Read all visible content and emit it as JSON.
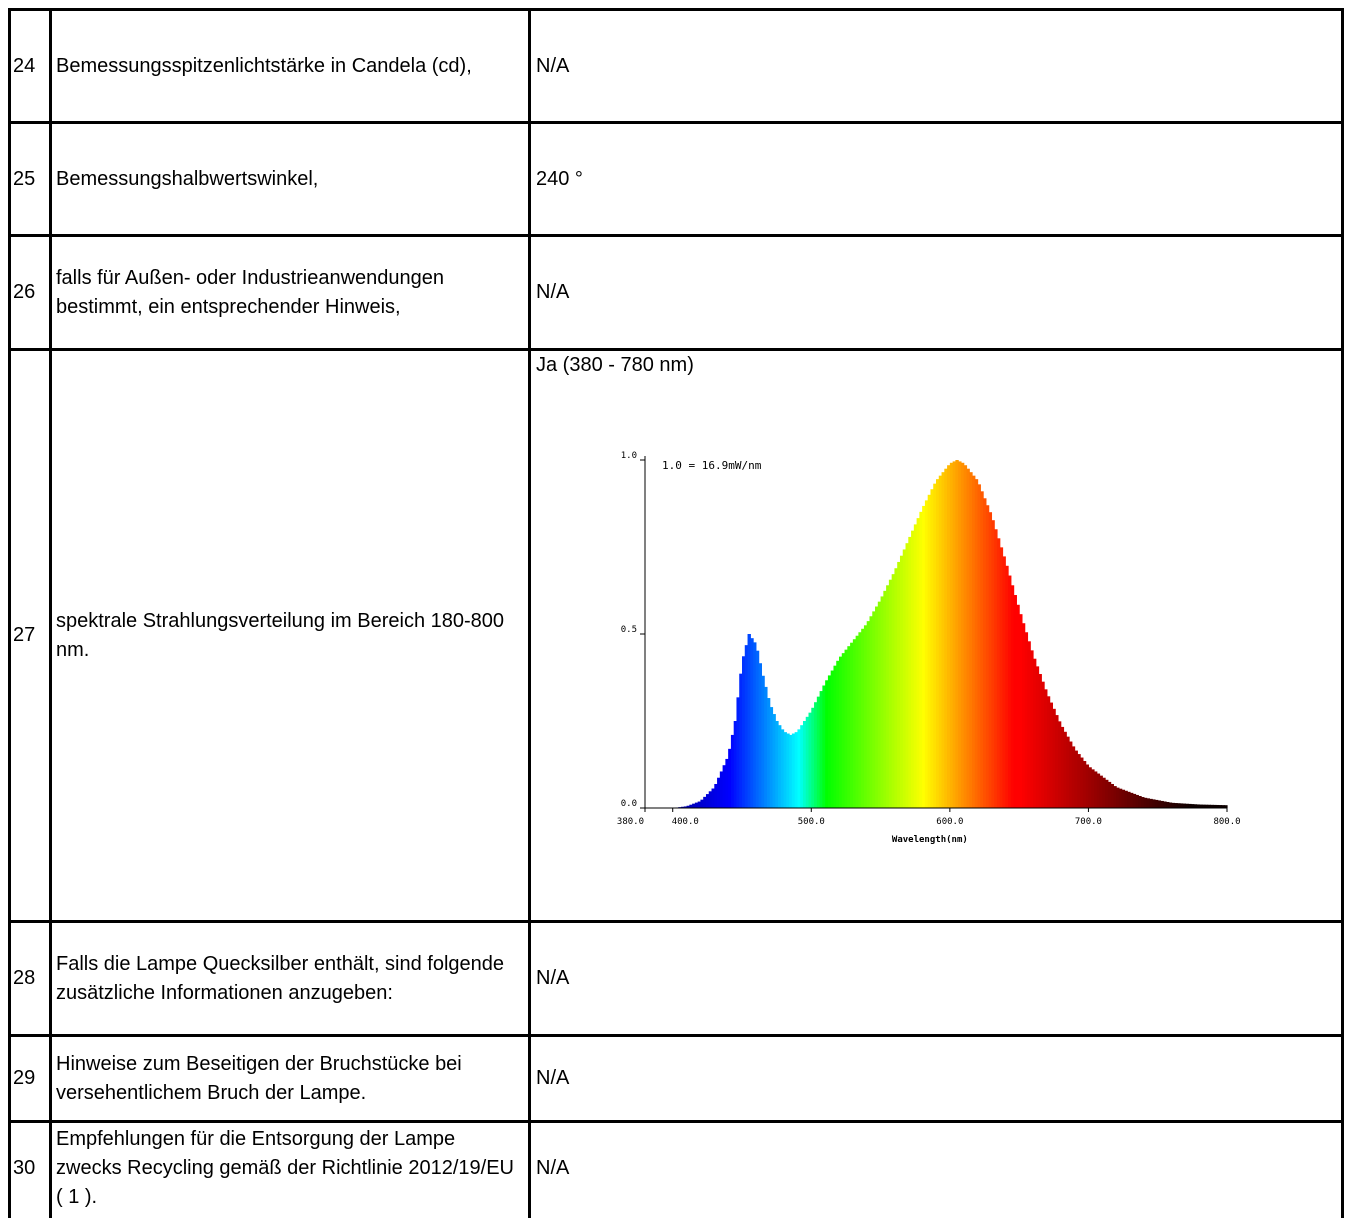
{
  "rows": [
    {
      "num": "24",
      "desc": "Bemessungsspitzenlichtstärke in Candela (cd),",
      "value": "N/A"
    },
    {
      "num": "25",
      "desc": "Bemessungshalbwertswinkel,",
      "value": "240 °"
    },
    {
      "num": "26",
      "desc": "falls für Außen- oder Industrieanwendungen bestimmt, ein entsprechender Hinweis,",
      "value": "N/A"
    },
    {
      "num": "27",
      "desc": "spektrale Strahlungsverteilung im Bereich 180-800 nm.",
      "value": "Ja (380 - 780 nm)"
    },
    {
      "num": "28",
      "desc": "Falls die Lampe Quecksilber enthält, sind folgende zusätzliche Informationen anzugeben:",
      "value": "N/A"
    },
    {
      "num": "29",
      "desc": "Hinweise zum Beseitigen der Bruchstücke bei versehentlichem Bruch der Lampe.",
      "value": "N/A"
    },
    {
      "num": "30",
      "desc": "Empfehlungen für die Entsorgung der Lampe zwecks Recycling gemäß der Richtlinie 2012/19/EU ( 1 ).",
      "value": "N/A"
    }
  ],
  "chart_data": {
    "type": "area",
    "annotation": "1.0 = 16.9mW/nm",
    "xlabel": "Wavelength(nm)",
    "ylabel": "",
    "xlim": [
      380,
      800
    ],
    "ylim": [
      0,
      1.0
    ],
    "x_ticks": [
      "380.0",
      "400.0",
      "500.0",
      "600.0",
      "700.0",
      "800.0"
    ],
    "y_ticks": [
      "0.0",
      "0.5",
      "1.0"
    ],
    "x": [
      380,
      400,
      410,
      420,
      430,
      440,
      445,
      450,
      455,
      460,
      465,
      470,
      475,
      480,
      485,
      490,
      500,
      510,
      520,
      530,
      540,
      550,
      560,
      570,
      580,
      590,
      600,
      605,
      610,
      620,
      630,
      640,
      650,
      660,
      670,
      680,
      690,
      700,
      720,
      740,
      760,
      780,
      800
    ],
    "y": [
      0.0,
      0.0,
      0.005,
      0.02,
      0.06,
      0.15,
      0.25,
      0.42,
      0.5,
      0.47,
      0.38,
      0.3,
      0.25,
      0.22,
      0.21,
      0.22,
      0.28,
      0.36,
      0.43,
      0.48,
      0.53,
      0.6,
      0.68,
      0.77,
      0.86,
      0.94,
      0.99,
      1.0,
      0.99,
      0.94,
      0.84,
      0.71,
      0.57,
      0.44,
      0.33,
      0.24,
      0.17,
      0.12,
      0.06,
      0.03,
      0.015,
      0.01,
      0.008
    ],
    "grid": false,
    "legend": "none"
  }
}
